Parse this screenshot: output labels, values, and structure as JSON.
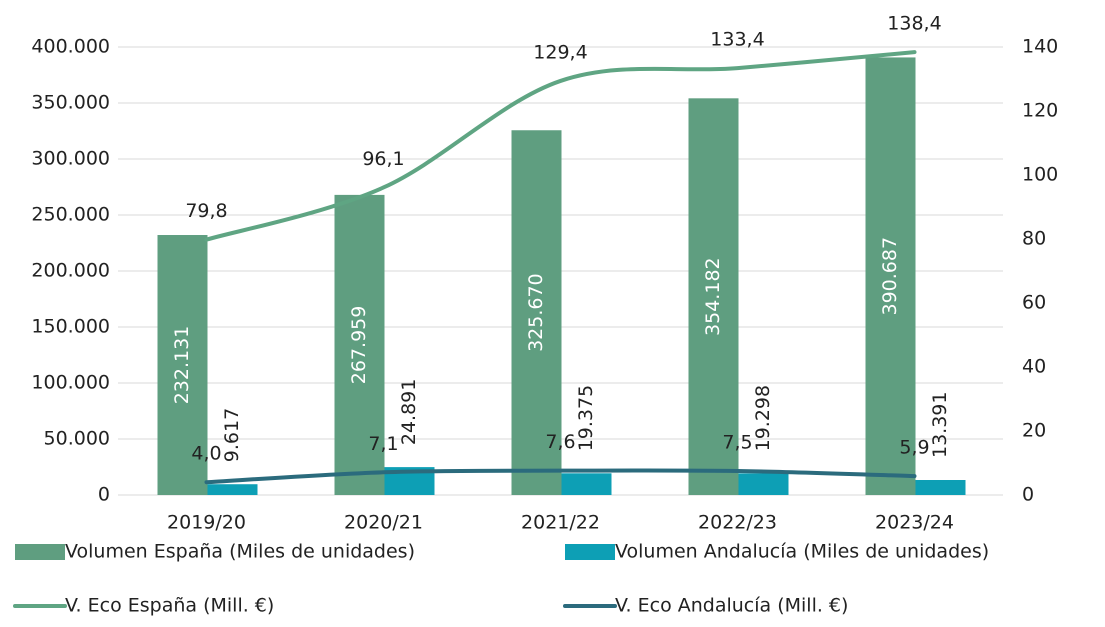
{
  "chart_data": {
    "type": "bar-line",
    "categories": [
      "2019/20",
      "2020/21",
      "2021/22",
      "2022/23",
      "2023/24"
    ],
    "series": [
      {
        "name": "Volumen España (Miles de unidades)",
        "kind": "bar",
        "color": "#5f9e80",
        "values": [
          232131,
          267959,
          325670,
          354182,
          390687
        ],
        "value_labels": [
          "232.131",
          "267.959",
          "325.670",
          "354.182",
          "390.687"
        ]
      },
      {
        "name": "Volumen Andalucía (Miles de unidades)",
        "kind": "bar",
        "color": "#0d9fb5",
        "values": [
          9617,
          24891,
          19375,
          19298,
          13391
        ],
        "value_labels": [
          "9.617",
          "24.891",
          "19.375",
          "19.298",
          "13.391"
        ]
      },
      {
        "name": "V. Eco España (Mill. €)",
        "kind": "line",
        "axis": "y2",
        "color": "#5fa583",
        "values": [
          79.8,
          96.1,
          129.4,
          133.4,
          138.4
        ],
        "value_labels": [
          "79,8",
          "96,1",
          "129,4",
          "133,4",
          "138,4"
        ]
      },
      {
        "name": "V. Eco Andalucía (Mill. €)",
        "kind": "line",
        "axis": "y2",
        "color": "#2b6b7d",
        "values": [
          4.0,
          7.1,
          7.6,
          7.5,
          5.9
        ],
        "value_labels": [
          "4,0",
          "7,1",
          "7,6",
          "7,5",
          "5,9"
        ]
      }
    ],
    "ylim": [
      0,
      400000
    ],
    "yticks": [
      0,
      {
        "value": 50000,
        "label": "50.000"
      },
      {
        "value": 100000,
        "label": "100.000"
      },
      {
        "value": 150000,
        "label": "150.000"
      },
      {
        "value": 200000,
        "label": "200.000"
      },
      {
        "value": 250000,
        "label": "250.000"
      },
      {
        "value": 300000,
        "label": "300.000"
      },
      {
        "value": 350000,
        "label": "350.000"
      },
      {
        "value": 400000,
        "label": "400.000"
      }
    ],
    "y2lim": [
      0,
      140
    ],
    "y2ticks": [
      0,
      20,
      40,
      60,
      80,
      100,
      120,
      140
    ],
    "grid": true
  }
}
